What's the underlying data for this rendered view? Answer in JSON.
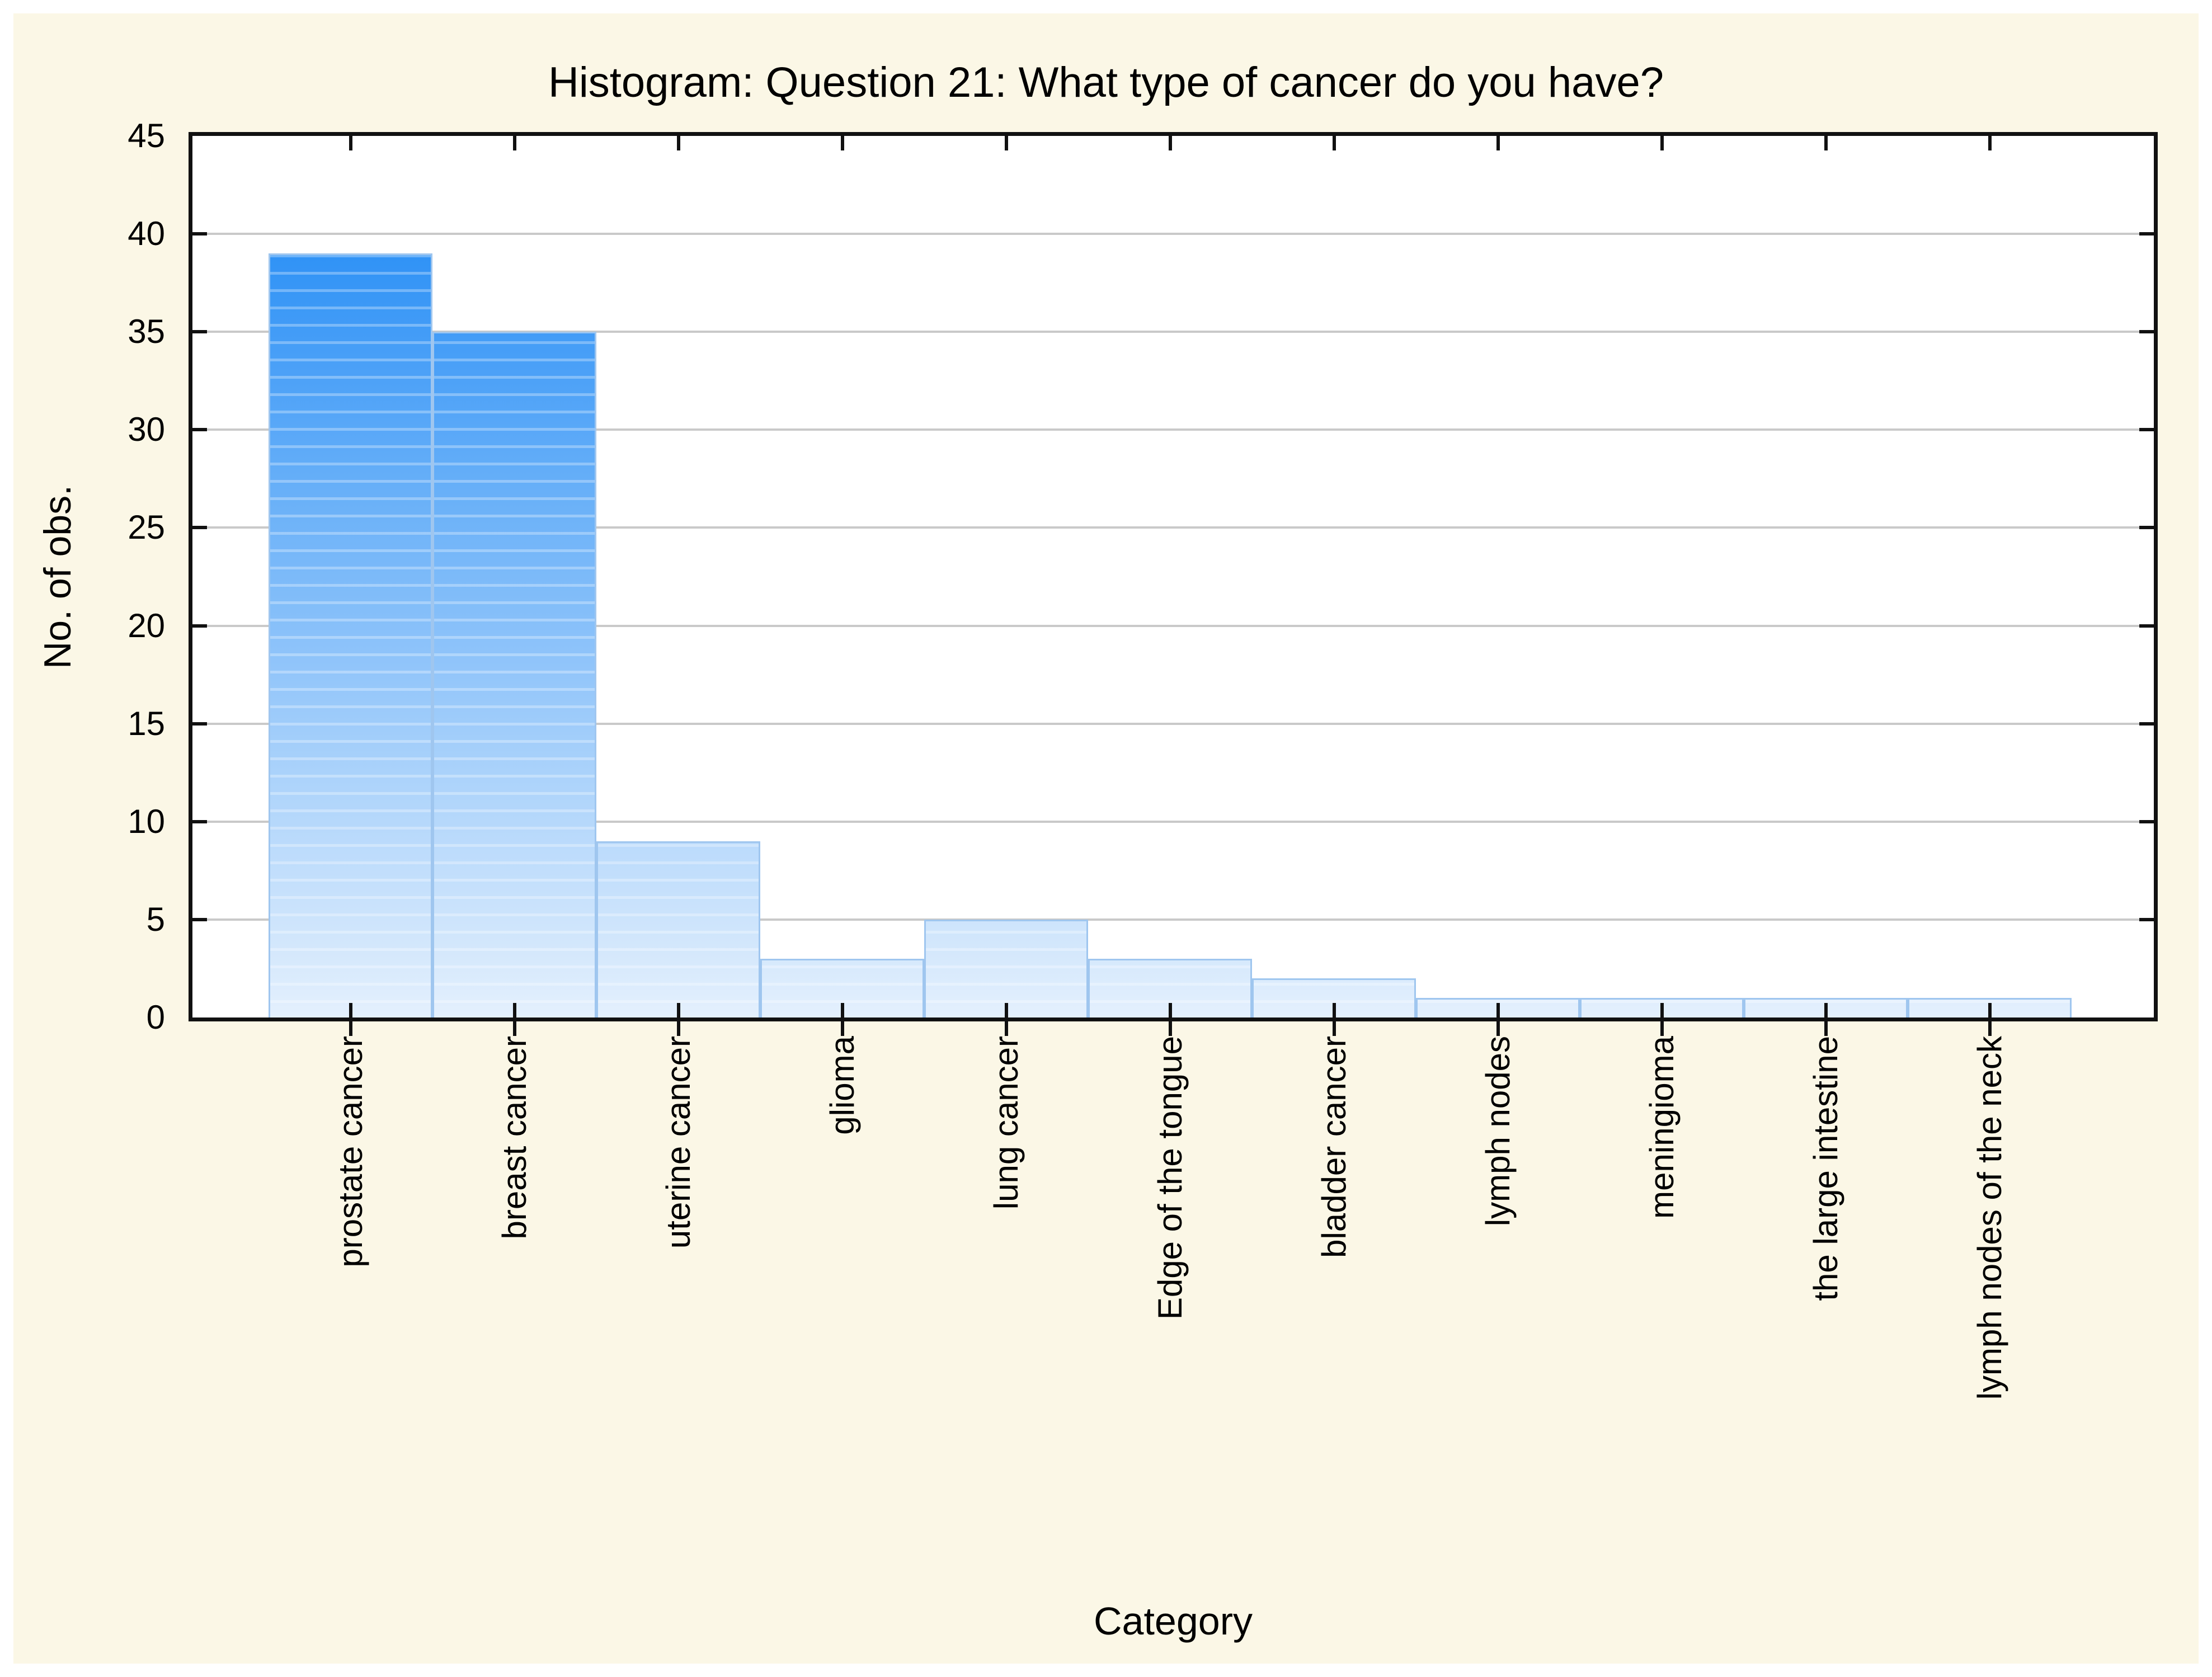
{
  "page": {
    "background": "#ffffff",
    "panel_background": "#fbf7e6"
  },
  "chart_data": {
    "type": "bar",
    "title": "Histogram: Question 21: What type of cancer do you have?",
    "xlabel": "Category",
    "ylabel": "No. of obs.",
    "categories": [
      "prostate cancer",
      "breast cancer",
      "uterine cancer",
      "glioma",
      "lung cancer",
      "Edge of the tongue",
      "bladder cancer",
      "lymph nodes",
      "meningioma",
      "the large intestine",
      "lymph nodes of the neck"
    ],
    "values": [
      39,
      35,
      9,
      3,
      5,
      3,
      2,
      1,
      1,
      1,
      1
    ],
    "ylim": [
      0,
      45
    ],
    "yticks": [
      0,
      5,
      10,
      15,
      20,
      25,
      30,
      35,
      40,
      45
    ],
    "grid": "horizontal-only",
    "legend": "none",
    "bar_label_rotation": "vertical-bottom-to-top",
    "colors": {
      "bar_gradient_top": "#1484f5",
      "bar_gradient_bottom": "#e4f0fd",
      "bar_border": "#9fc6ef",
      "gridline": "#c9c9c9",
      "plot_background": "#ffffff",
      "panel_background": "#fbf7e6",
      "axis": "#111111",
      "text": "#000000"
    }
  }
}
